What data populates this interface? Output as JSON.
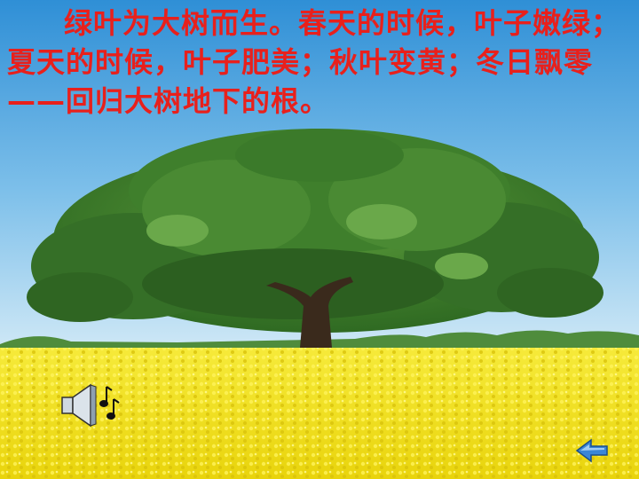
{
  "slide": {
    "caption": "绿叶为大树而生。春天的时候，叶子嫩绿；夏天的时候，叶子肥美；秋叶变黄；冬日飘零——回归大树地下的根。"
  },
  "colors": {
    "caption": "#e8201c",
    "sky_top": "#2f8fd6",
    "sky_bottom": "#cfe8f6",
    "field": "#f3e218",
    "foliage": "#3f7f2c",
    "trunk": "#3a2a1c"
  },
  "icons": {
    "sound": "speaker-with-music-notes-icon",
    "back": "back-arrow-icon"
  }
}
